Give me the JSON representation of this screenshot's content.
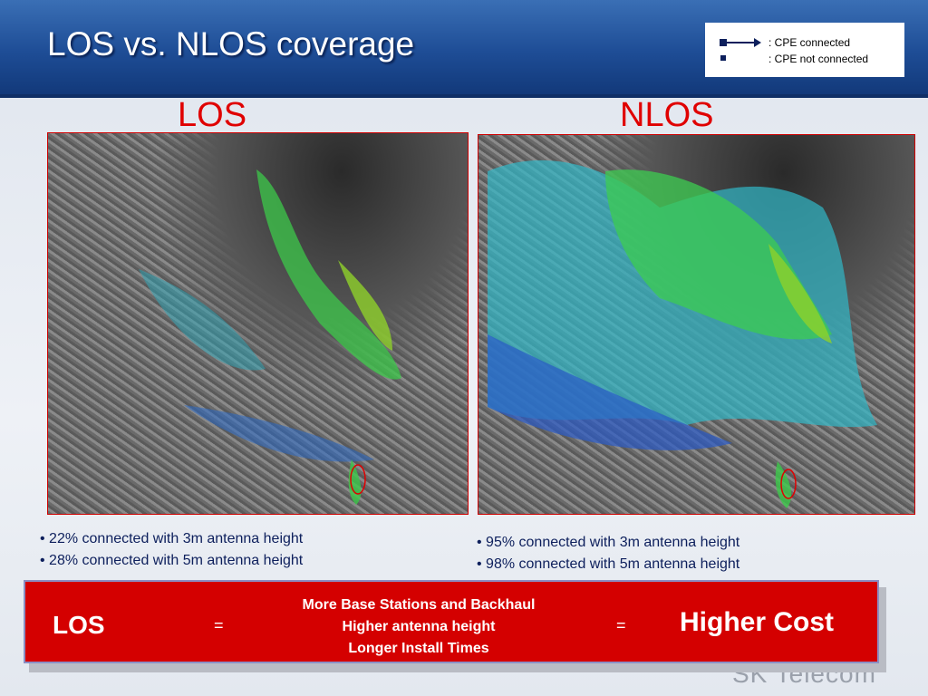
{
  "header": {
    "title": "LOS vs. NLOS coverage"
  },
  "legend": {
    "items": [
      ": CPE connected",
      ": CPE not connected"
    ]
  },
  "panels": [
    {
      "heading": "LOS",
      "bullets": [
        "22% connected with 3m antenna height",
        "28% connected with 5m antenna height"
      ]
    },
    {
      "heading": "NLOS",
      "bullets": [
        "95% connected with 3m antenna height",
        "98% connected with 5m antenna height"
      ]
    }
  ],
  "summary": {
    "left": "LOS",
    "equals_1": "=",
    "middle": [
      "More Base Stations and Backhaul",
      "Higher antenna height",
      "Longer Install Times"
    ],
    "equals_2": "=",
    "right": "Higher Cost"
  },
  "footer": {
    "logo": "SK Telecom"
  }
}
